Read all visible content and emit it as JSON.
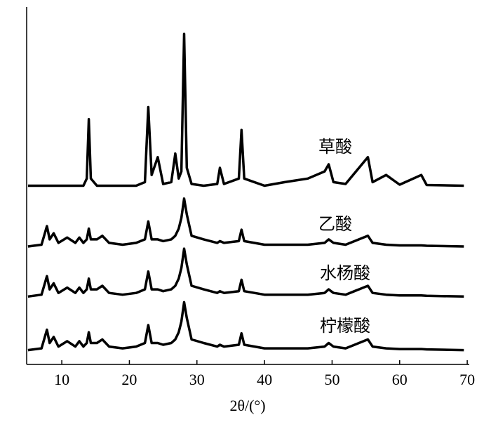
{
  "chart_data": {
    "type": "line",
    "x_label": "2θ/(°)",
    "x": [
      5,
      7,
      7.8,
      8.2,
      8.8,
      9.5,
      10.8,
      12,
      12.6,
      13.2,
      13.7,
      14,
      14.3,
      15.2,
      16,
      17,
      19,
      21,
      22.3,
      22.8,
      23.3,
      24.2,
      25,
      26.2,
      26.8,
      27.3,
      27.7,
      28.1,
      28.5,
      29.2,
      31,
      33,
      33.4,
      34,
      36.2,
      36.6,
      37,
      40,
      43,
      46.4,
      48.9,
      49.5,
      50.2,
      52,
      55.3,
      56,
      58,
      60,
      63.2,
      64,
      69.5
    ],
    "series": [
      {
        "name": "草酸",
        "color": "#000000",
        "values": [
          50,
          50,
          50,
          50,
          50,
          50,
          50,
          50,
          50,
          50,
          52,
          68.6,
          52,
          50,
          50,
          50,
          50,
          50,
          51,
          72,
          53,
          58,
          50.5,
          51,
          59,
          52,
          54,
          92.5,
          55,
          50.5,
          50,
          50.5,
          55,
          50.5,
          52,
          65.6,
          52,
          50,
          51,
          52,
          54,
          56,
          51,
          50.5,
          58,
          51,
          53,
          50.3,
          53,
          50.2,
          50
        ]
      },
      {
        "name": "乙酸",
        "color": "#000000",
        "values": [
          33,
          33.5,
          38.7,
          35,
          36.7,
          34,
          35.5,
          34,
          35.5,
          34,
          35,
          38,
          35,
          35,
          36,
          34,
          33.5,
          34,
          35,
          40,
          35,
          35,
          34.5,
          35,
          36,
          38,
          41,
          46.4,
          42,
          36,
          35,
          34,
          34.5,
          34,
          34.5,
          37.7,
          34.5,
          33.5,
          33.5,
          33.5,
          34,
          35,
          34,
          33.5,
          36,
          34,
          33.5,
          33.3,
          33.3,
          33.2,
          33
        ]
      },
      {
        "name": "水杨酸",
        "color": "#000000",
        "values": [
          19,
          19.5,
          24.7,
          21,
          22.7,
          20,
          21.5,
          20,
          21.5,
          20,
          21,
          24,
          21,
          21,
          22,
          20,
          19.5,
          20,
          21,
          26,
          21,
          21,
          20.5,
          21,
          22,
          24,
          27,
          32.4,
          28,
          22,
          21,
          20,
          20.5,
          20,
          20.5,
          23.7,
          20.5,
          19.5,
          19.5,
          19.5,
          20,
          21,
          20,
          19.5,
          22,
          20,
          19.5,
          19.3,
          19.3,
          19.2,
          19
        ]
      },
      {
        "name": "柠檬酸",
        "color": "#000000",
        "values": [
          4,
          4.5,
          9.7,
          6,
          7.7,
          5,
          6.5,
          5,
          6.5,
          5,
          6,
          9,
          6,
          6,
          7,
          5,
          4.5,
          5,
          6,
          11,
          6,
          6,
          5.5,
          6,
          7,
          9,
          12,
          17.4,
          13,
          7,
          6,
          5,
          5.5,
          5,
          5.5,
          8.7,
          5.5,
          4.5,
          4.5,
          4.5,
          5,
          6,
          5,
          4.5,
          7,
          5,
          4.5,
          4.3,
          4.3,
          4.2,
          4
        ]
      }
    ],
    "xlim": [
      4.8,
      70.3
    ],
    "xticks": [
      10,
      20,
      30,
      40,
      50,
      60,
      70
    ],
    "ylim": [
      0,
      100
    ]
  }
}
